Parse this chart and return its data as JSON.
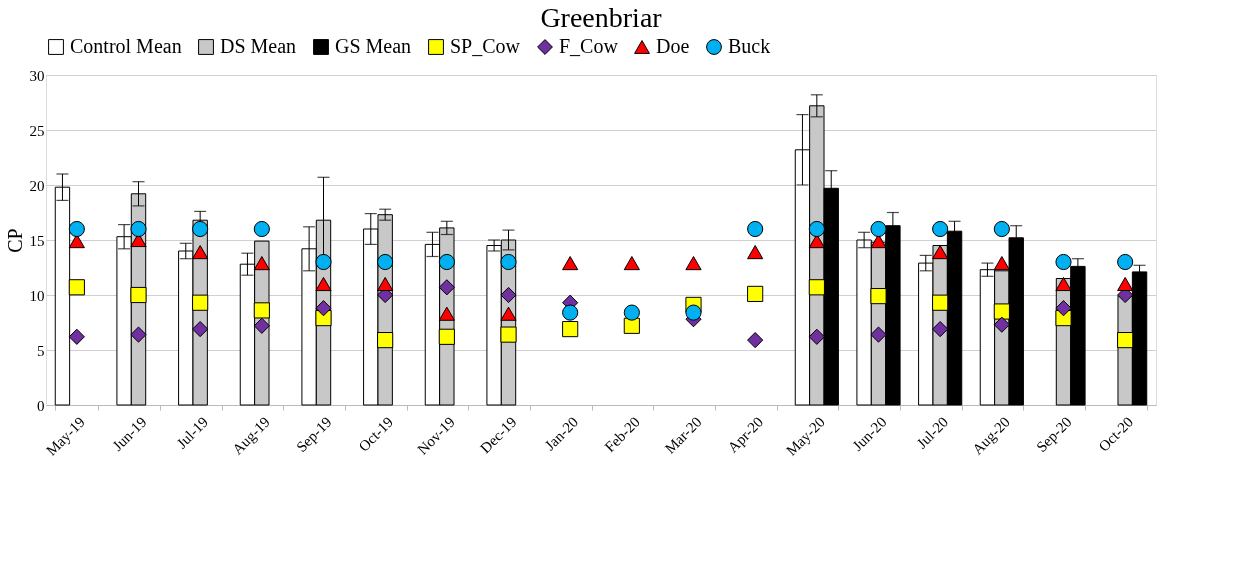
{
  "chart_data": {
    "type": "bar",
    "title": "Greenbriar",
    "ylabel": "CP",
    "categories": [
      "May-19",
      "Jun-19",
      "Jul-19",
      "Aug-19",
      "Sep-19",
      "Oct-19",
      "Nov-19",
      "Dec-19",
      "Jan-20",
      "Feb-20",
      "Mar-20",
      "Apr-20",
      "May-20",
      "Jun-20",
      "Jul-20",
      "Aug-20",
      "Sep-20",
      "Oct-20"
    ],
    "series": [
      {
        "name": "Control Mean",
        "color": "#ffffff",
        "values": [
          19.8,
          15.3,
          14.0,
          12.8,
          14.2,
          16.0,
          14.6,
          14.5,
          null,
          null,
          null,
          null,
          23.2,
          15.0,
          12.9,
          12.3,
          null,
          null
        ],
        "errors": [
          1.2,
          1.1,
          0.7,
          1.0,
          2.0,
          1.4,
          1.1,
          0.5,
          null,
          null,
          null,
          null,
          3.2,
          0.7,
          0.7,
          0.6,
          null,
          null
        ]
      },
      {
        "name": "DS Mean",
        "color": "#c8c8c8",
        "values": [
          null,
          19.2,
          16.8,
          14.9,
          16.8,
          17.3,
          16.1,
          15.0,
          null,
          null,
          null,
          null,
          27.2,
          14.8,
          14.5,
          12.2,
          11.5,
          9.9
        ],
        "errors": [
          null,
          1.1,
          0.8,
          null,
          3.9,
          0.5,
          0.6,
          0.9,
          null,
          null,
          null,
          null,
          1.0,
          null,
          null,
          null,
          null,
          null
        ]
      },
      {
        "name": "GS Mean",
        "color": "#000000",
        "values": [
          null,
          null,
          null,
          null,
          null,
          null,
          null,
          null,
          null,
          null,
          null,
          null,
          19.7,
          16.3,
          15.8,
          15.2,
          12.6,
          12.1
        ],
        "errors": [
          null,
          null,
          null,
          null,
          null,
          null,
          null,
          null,
          null,
          null,
          null,
          null,
          1.6,
          1.2,
          0.9,
          1.1,
          0.7,
          0.6
        ]
      },
      {
        "name": "SP_Cow",
        "type": "scatter",
        "marker": "square",
        "color": "#ffff00",
        "values": [
          10.7,
          10.0,
          9.3,
          8.6,
          7.9,
          5.9,
          6.2,
          6.4,
          6.9,
          7.2,
          9.1,
          10.1,
          10.7,
          9.9,
          9.3,
          8.5,
          7.9,
          5.9
        ]
      },
      {
        "name": "F_Cow",
        "type": "scatter",
        "marker": "diamond",
        "color": "#7030a0",
        "values": [
          6.2,
          6.4,
          6.9,
          7.2,
          8.8,
          10.0,
          10.7,
          10.0,
          9.3,
          null,
          7.8,
          5.9,
          6.2,
          6.4,
          6.9,
          7.3,
          8.8,
          10.0
        ]
      },
      {
        "name": "Doe",
        "type": "scatter",
        "marker": "triangle",
        "color": "#ff0000",
        "values": [
          14.9,
          15.0,
          13.9,
          12.9,
          11.0,
          11.0,
          8.3,
          8.3,
          12.9,
          12.9,
          12.9,
          13.9,
          14.9,
          14.9,
          13.9,
          12.9,
          11.0,
          11.0
        ]
      },
      {
        "name": "Buck",
        "type": "scatter",
        "marker": "circle",
        "color": "#00b0f0",
        "values": [
          16,
          16,
          16,
          16,
          13,
          13,
          13,
          13,
          8.4,
          8.4,
          8.4,
          16,
          16,
          16,
          16,
          16,
          13,
          13
        ]
      }
    ],
    "ylim": [
      0,
      30
    ],
    "yticks": [
      0,
      5,
      10,
      15,
      20,
      25,
      30
    ],
    "grid": "y",
    "legend": "top"
  }
}
